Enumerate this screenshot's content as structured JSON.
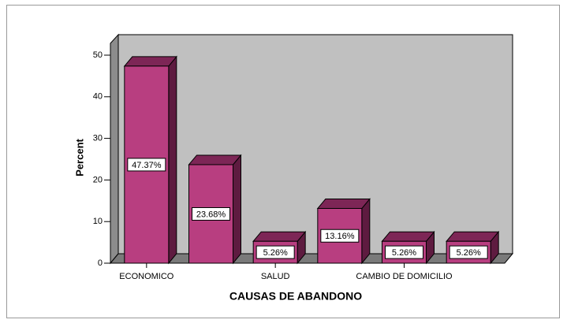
{
  "chart_data": {
    "type": "bar3d",
    "xlabel": "CAUSAS DE ABANDONO",
    "ylabel": "Percent",
    "categories": [
      "ECONOMICO",
      null,
      "SALUD",
      null,
      "CAMBIO DE DOMICILIO",
      null
    ],
    "values": [
      47.37,
      23.68,
      5.26,
      13.16,
      5.26,
      5.26
    ],
    "value_labels": [
      "47.37%",
      "23.68%",
      "5.26%",
      "13.16%",
      "5.26%",
      "5.26%"
    ],
    "color": "#b83e80",
    "ylim": [
      0,
      50
    ],
    "yticks": [
      0,
      10,
      20,
      30,
      40,
      50
    ]
  }
}
